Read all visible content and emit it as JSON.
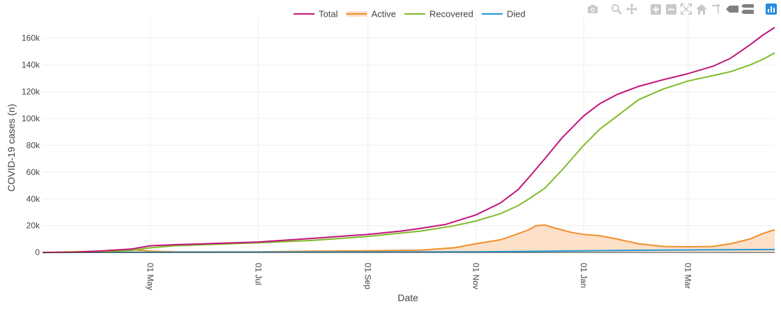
{
  "chart_data": {
    "type": "line",
    "title": "",
    "xlabel": "Date",
    "ylabel": "COVID-19 cases (n)",
    "x_range": [
      "2020-03-01",
      "2021-04-19"
    ],
    "ylim": [
      -1500,
      176000
    ],
    "y_ticks": [
      0,
      20000,
      40000,
      60000,
      80000,
      100000,
      120000,
      140000,
      160000
    ],
    "y_tick_labels": [
      "0",
      "20k",
      "40k",
      "60k",
      "80k",
      "100k",
      "120k",
      "140k",
      "160k"
    ],
    "x_ticks": [
      "2020-05-01",
      "2020-07-01",
      "2020-09-01",
      "2020-11-01",
      "2021-01-01",
      "2021-03-01"
    ],
    "x_tick_labels": [
      "01 May",
      "01 Jul",
      "01 Sep",
      "01 Nov",
      "01 Jan",
      "01 Mar"
    ],
    "legend": [
      "Total",
      "Active",
      "Recovered",
      "Died"
    ],
    "legend_position": "top-center",
    "grid": true,
    "series": [
      {
        "name": "Total",
        "color": "#c2127a",
        "fill": false,
        "points": [
          [
            "2020-03-01",
            0
          ],
          [
            "2020-03-20",
            200
          ],
          [
            "2020-04-01",
            1000
          ],
          [
            "2020-04-20",
            2500
          ],
          [
            "2020-05-01",
            5000
          ],
          [
            "2020-05-15",
            5800
          ],
          [
            "2020-06-01",
            6500
          ],
          [
            "2020-07-01",
            7800
          ],
          [
            "2020-08-01",
            10500
          ],
          [
            "2020-09-01",
            13500
          ],
          [
            "2020-09-20",
            16000
          ],
          [
            "2020-10-01",
            18000
          ],
          [
            "2020-10-15",
            21000
          ],
          [
            "2020-11-01",
            28000
          ],
          [
            "2020-11-15",
            37000
          ],
          [
            "2020-11-25",
            47000
          ],
          [
            "2020-12-01",
            56000
          ],
          [
            "2020-12-10",
            70000
          ],
          [
            "2020-12-20",
            86000
          ],
          [
            "2021-01-01",
            102000
          ],
          [
            "2021-01-10",
            111000
          ],
          [
            "2021-01-20",
            118000
          ],
          [
            "2021-02-01",
            124000
          ],
          [
            "2021-02-15",
            129000
          ],
          [
            "2021-03-01",
            133500
          ],
          [
            "2021-03-15",
            139000
          ],
          [
            "2021-03-25",
            145000
          ],
          [
            "2021-04-05",
            155000
          ],
          [
            "2021-04-12",
            162000
          ],
          [
            "2021-04-19",
            168000
          ]
        ]
      },
      {
        "name": "Active",
        "color": "#f28e2b",
        "fill": true,
        "fill_color": "#fde0c8",
        "points": [
          [
            "2020-03-01",
            0
          ],
          [
            "2020-04-01",
            1000
          ],
          [
            "2020-04-20",
            2300
          ],
          [
            "2020-05-01",
            1000
          ],
          [
            "2020-05-15",
            500
          ],
          [
            "2020-06-01",
            400
          ],
          [
            "2020-07-01",
            500
          ],
          [
            "2020-08-01",
            1000
          ],
          [
            "2020-09-01",
            1200
          ],
          [
            "2020-10-01",
            1800
          ],
          [
            "2020-10-20",
            3500
          ],
          [
            "2020-11-01",
            6500
          ],
          [
            "2020-11-15",
            9500
          ],
          [
            "2020-11-25",
            14000
          ],
          [
            "2020-12-01",
            17000
          ],
          [
            "2020-12-05",
            20000
          ],
          [
            "2020-12-10",
            20500
          ],
          [
            "2020-12-15",
            18500
          ],
          [
            "2020-12-25",
            15000
          ],
          [
            "2021-01-01",
            13500
          ],
          [
            "2021-01-10",
            12500
          ],
          [
            "2021-01-20",
            10000
          ],
          [
            "2021-02-01",
            6500
          ],
          [
            "2021-02-15",
            4500
          ],
          [
            "2021-03-01",
            4200
          ],
          [
            "2021-03-15",
            4500
          ],
          [
            "2021-03-25",
            6500
          ],
          [
            "2021-04-05",
            10000
          ],
          [
            "2021-04-12",
            14000
          ],
          [
            "2021-04-19",
            17000
          ]
        ]
      },
      {
        "name": "Recovered",
        "color": "#7fba27",
        "fill": false,
        "points": [
          [
            "2020-03-01",
            0
          ],
          [
            "2020-04-01",
            300
          ],
          [
            "2020-04-20",
            1500
          ],
          [
            "2020-05-01",
            3500
          ],
          [
            "2020-05-15",
            5000
          ],
          [
            "2020-06-01",
            5800
          ],
          [
            "2020-07-01",
            7200
          ],
          [
            "2020-08-01",
            9000
          ],
          [
            "2020-09-01",
            12000
          ],
          [
            "2020-10-01",
            16000
          ],
          [
            "2020-10-20",
            20000
          ],
          [
            "2020-11-01",
            23500
          ],
          [
            "2020-11-15",
            29000
          ],
          [
            "2020-11-25",
            35000
          ],
          [
            "2020-12-01",
            40000
          ],
          [
            "2020-12-10",
            48000
          ],
          [
            "2020-12-20",
            62000
          ],
          [
            "2021-01-01",
            80000
          ],
          [
            "2021-01-10",
            92000
          ],
          [
            "2021-01-20",
            102000
          ],
          [
            "2021-02-01",
            114000
          ],
          [
            "2021-02-15",
            122000
          ],
          [
            "2021-03-01",
            128000
          ],
          [
            "2021-03-15",
            132000
          ],
          [
            "2021-03-25",
            135000
          ],
          [
            "2021-04-05",
            140000
          ],
          [
            "2021-04-12",
            144000
          ],
          [
            "2021-04-19",
            149000
          ]
        ]
      },
      {
        "name": "Died",
        "color": "#1f9ad6",
        "fill": false,
        "points": [
          [
            "2020-03-01",
            0
          ],
          [
            "2020-06-01",
            200
          ],
          [
            "2020-09-01",
            300
          ],
          [
            "2020-11-01",
            500
          ],
          [
            "2020-12-01",
            800
          ],
          [
            "2021-01-01",
            1200
          ],
          [
            "2021-02-01",
            1600
          ],
          [
            "2021-03-01",
            1900
          ],
          [
            "2021-04-19",
            2200
          ]
        ]
      }
    ]
  },
  "modebar": {
    "icon_color": "#c8c8c8",
    "active_color": "#2a8ae0",
    "items": [
      "camera-icon",
      "zoom-icon",
      "pan-icon",
      "zoom-in-icon",
      "zoom-out-icon",
      "autoscale-icon",
      "reset-axes-icon",
      "spike-lines-icon",
      "hover-closest-icon",
      "hover-compare-icon",
      "plotly-logo-icon"
    ]
  }
}
